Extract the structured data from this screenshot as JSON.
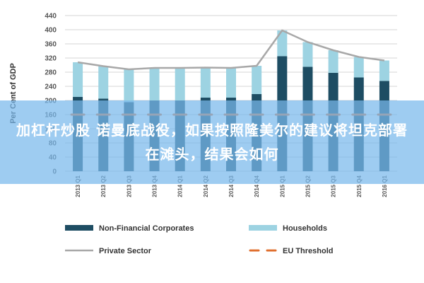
{
  "chart_data": {
    "type": "bar",
    "categories": [
      "2013 Q1",
      "2013 Q2",
      "2013 Q3",
      "2013 Q4",
      "2014 Q1",
      "2014 Q2",
      "2014 Q3",
      "2014 Q4",
      "2015 Q1",
      "2015 Q2",
      "2015 Q3",
      "2015 Q4",
      "2016 Q1"
    ],
    "series": [
      {
        "name": "Non-Financial Corporates",
        "kind": "bar",
        "stacked": true,
        "color": "#1e4d63",
        "values": [
          210,
          205,
          195,
          200,
          200,
          208,
          208,
          218,
          325,
          295,
          278,
          265,
          255
        ]
      },
      {
        "name": "Households",
        "kind": "bar",
        "stacked": true,
        "color": "#9dd3e2",
        "values": [
          98,
          92,
          93,
          92,
          92,
          85,
          84,
          80,
          73,
          70,
          64,
          58,
          58
        ]
      },
      {
        "name": "Private Sector",
        "kind": "line",
        "color": "#a8a8a8",
        "values": [
          308,
          297,
          288,
          292,
          292,
          293,
          292,
          298,
          398,
          365,
          342,
          323,
          313
        ]
      },
      {
        "name": "EU Threshold",
        "kind": "dashed",
        "color": "#e07030",
        "values": [
          160,
          160,
          160,
          160,
          160,
          160,
          160,
          160,
          160,
          160,
          160,
          160,
          160
        ]
      }
    ],
    "ylabel": "Per Cent of GDP",
    "ylim": [
      0,
      440
    ],
    "yticks": [
      0,
      40,
      80,
      120,
      160,
      200,
      240,
      280,
      320,
      360,
      400,
      440
    ],
    "grid": true,
    "legend_position": "bottom"
  },
  "overlay": {
    "text": "加杠杆炒股 诺曼底战役，如果按照隆美尔的建议将坦克部署在滩头，结果会如何"
  }
}
